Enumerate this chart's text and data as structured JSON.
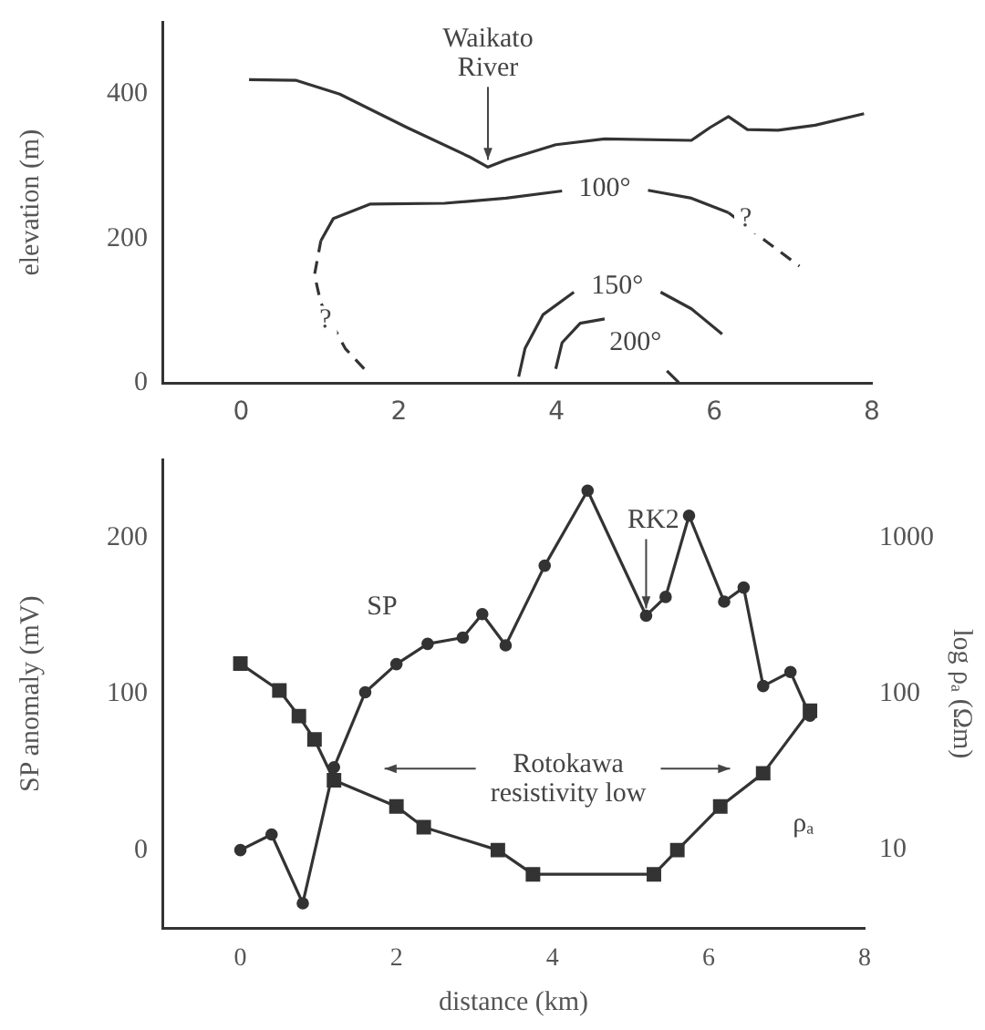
{
  "chart_data": [
    {
      "type": "line",
      "ylabel": "elevation (m)",
      "xlim": [
        -1,
        8
      ],
      "xticks": [
        0,
        2,
        4,
        6,
        8
      ],
      "ylim": [
        0,
        500
      ],
      "yticks": [
        0,
        200,
        400
      ],
      "grid": false,
      "legend": false,
      "series": [
        {
          "color": "#333333",
          "x": [
            0.1,
            0.7,
            1.25,
            2.1,
            2.9,
            3.13,
            3.36,
            3.99,
            4.61,
            5.71,
            5.95,
            6.18,
            6.42,
            6.81,
            7.28,
            7.9
          ],
          "values": [
            420,
            419,
            400,
            354,
            313,
            299,
            309,
            330,
            338,
            336,
            354,
            369,
            351,
            350,
            357,
            373
          ]
        },
        {
          "color": "#333333",
          "line_style": "dashed",
          "x": [
            1.56,
            1.32,
            1.01,
            0.93,
            1.01
          ],
          "values": [
            20,
            48,
            111,
            150,
            197
          ]
        },
        {
          "color": "#333333",
          "x": [
            1.01,
            1.17,
            1.64,
            2.58,
            3.36,
            4.07
          ],
          "values": [
            197,
            228,
            248,
            249,
            256,
            266
          ]
        },
        {
          "color": "#333333",
          "x": [
            5.16,
            5.71,
            6.18
          ],
          "values": [
            267,
            256,
            236
          ]
        },
        {
          "color": "#333333",
          "line_style": "dashed",
          "x": [
            6.18,
            6.65,
            7.08
          ],
          "values": [
            236,
            197,
            162
          ]
        },
        {
          "color": "#333333",
          "x": [
            3.52,
            3.6,
            3.83,
            4.22
          ],
          "values": [
            9,
            48,
            95,
            126
          ]
        },
        {
          "color": "#333333",
          "x": [
            5.32,
            5.71,
            6.1
          ],
          "values": [
            126,
            103,
            68
          ]
        },
        {
          "color": "#333333",
          "x": [
            3.99,
            4.07,
            4.3,
            4.61
          ],
          "values": [
            20,
            56,
            83,
            89
          ]
        },
        {
          "color": "#333333",
          "x": [
            5.4,
            5.55
          ],
          "values": [
            17,
            1
          ]
        }
      ],
      "annotations": [
        {
          "text": "Waikato River",
          "x": 3.13,
          "y": 299
        },
        {
          "text": "100°",
          "x": 4.61,
          "y": 269
        },
        {
          "text": "?",
          "x": 6.4,
          "y": 227
        },
        {
          "text": "?",
          "x": 1.07,
          "y": 87
        },
        {
          "text": "150°",
          "x": 4.77,
          "y": 134
        },
        {
          "text": "200°",
          "x": 5.0,
          "y": 56
        }
      ]
    },
    {
      "type": "line",
      "xlabel": "distance (km)",
      "ylabel": "SP anomaly (mV)",
      "y2label": "log ρₐ (Ωm)",
      "xlim": [
        -1,
        8
      ],
      "xticks": [
        0,
        2,
        4,
        6,
        8
      ],
      "ylim": [
        -50,
        250
      ],
      "yticks": [
        0,
        100,
        200
      ],
      "y2lim": [
        3.16,
        3162
      ],
      "y2ticks": [
        10,
        100,
        1000
      ],
      "log": "y2",
      "grid": false,
      "legend": false,
      "series": [
        {
          "name": "SP",
          "color": "#333333",
          "marker": "circle",
          "x": [
            0,
            0.4,
            0.8,
            1.2,
            1.6,
            2.0,
            2.4,
            2.85,
            3.1,
            3.4,
            3.9,
            4.45,
            5.2,
            5.45,
            5.75,
            6.2,
            6.45,
            6.7,
            7.05,
            7.3
          ],
          "values": [
            0,
            10,
            -34,
            53,
            101,
            119,
            132,
            136,
            151,
            131,
            182,
            230,
            150,
            162,
            214,
            159,
            168,
            105,
            114,
            86
          ]
        },
        {
          "name": "ρₐ",
          "color": "#333333",
          "marker": "square",
          "axis": "y2",
          "x": [
            0,
            0.5,
            0.75,
            0.95,
            1.2,
            2.0,
            2.35,
            3.3,
            3.75,
            5.3,
            5.6,
            6.15,
            6.7,
            7.3
          ],
          "values": [
            156,
            105,
            72,
            51,
            28,
            19,
            14,
            10,
            7,
            7,
            10,
            19,
            31,
            78
          ]
        }
      ],
      "annotations": [
        {
          "text": "RK2",
          "x": 5.2,
          "y": 150
        },
        "Rotokawa resistivity low"
      ]
    }
  ]
}
